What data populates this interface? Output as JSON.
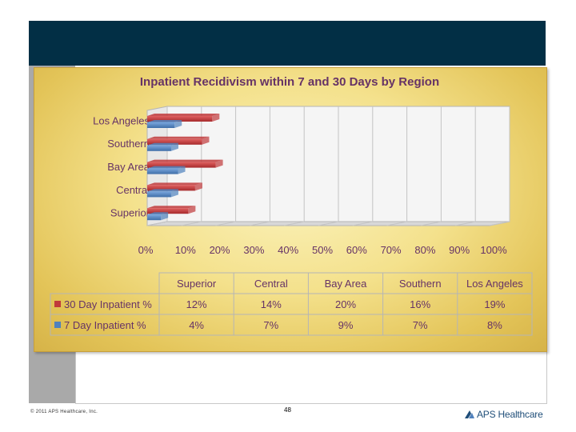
{
  "footer": {
    "copyright": "© 2011 APS Healthcare, Inc.",
    "page_number": "48",
    "logo_text": "APS Healthcare"
  },
  "colors": {
    "thirty_day": "#c0393b",
    "seven_day": "#4f81bd",
    "header": "#022f45"
  },
  "chart_data": {
    "type": "bar",
    "orientation": "horizontal",
    "title": "Inpatient Recidivism within 7 and 30 Days by Region",
    "categories": [
      "Superior",
      "Central",
      "Bay Area",
      "Southern",
      "Los Angeles"
    ],
    "series": [
      {
        "name": "30 Day Inpatient %",
        "values": [
          12,
          14,
          20,
          16,
          19
        ],
        "labels": [
          "12%",
          "14%",
          "20%",
          "16%",
          "19%"
        ]
      },
      {
        "name": "7 Day Inpatient %",
        "values": [
          4,
          7,
          9,
          7,
          8
        ],
        "labels": [
          "4%",
          "7%",
          "9%",
          "7%",
          "8%"
        ]
      }
    ],
    "x_ticks": [
      "0%",
      "10%",
      "20%",
      "30%",
      "40%",
      "50%",
      "60%",
      "70%",
      "80%",
      "90%",
      "100%"
    ],
    "xlim": [
      0,
      100
    ],
    "grid": true,
    "legend": "data-table-below"
  }
}
